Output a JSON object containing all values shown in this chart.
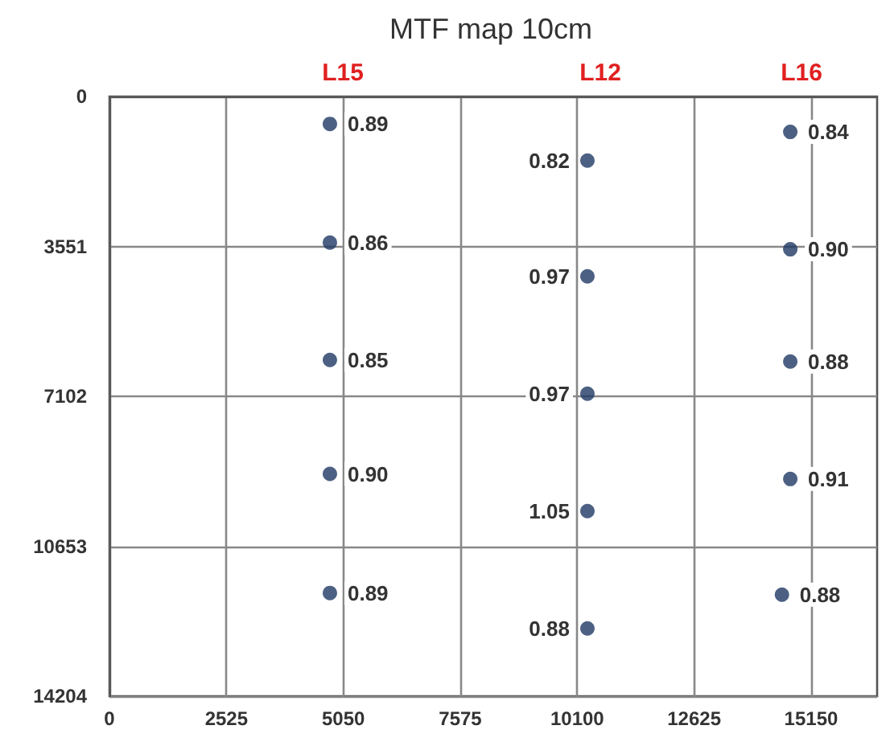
{
  "chart_data": {
    "type": "scatter",
    "title": "MTF map 10cm",
    "annotations": [
      "L15",
      "L12",
      "L16",
      {
        "text": "0.89",
        "x": 4760,
        "y": 650
      },
      {
        "text": "0.86",
        "x": 4760,
        "y": 3460
      },
      {
        "text": "0.85",
        "x": 4760,
        "y": 6240
      },
      {
        "text": "0.90",
        "x": 4760,
        "y": 8940
      },
      {
        "text": "0.89",
        "x": 4760,
        "y": 11760
      },
      {
        "text": "0.82",
        "x": 10320,
        "y": 1520
      },
      {
        "text": "0.97",
        "x": 10320,
        "y": 4260
      },
      {
        "text": "0.97",
        "x": 10320,
        "y": 7040
      },
      {
        "text": "1.05",
        "x": 10320,
        "y": 9820
      },
      {
        "text": "0.88",
        "x": 10320,
        "y": 12600
      },
      {
        "text": "0.84",
        "x": 14700,
        "y": 840
      },
      {
        "text": "0.90",
        "x": 14700,
        "y": 3620
      },
      {
        "text": "0.88",
        "x": 14700,
        "y": 6280
      },
      {
        "text": "0.91",
        "x": 14700,
        "y": 9060
      },
      {
        "text": "0.88",
        "x": 14520,
        "y": 11800
      }
    ],
    "series": [
      {
        "color": "#1f3864",
        "x": [
          4760,
          4760,
          4760,
          4760,
          4760
        ],
        "values": [
          650,
          3460,
          6240,
          8940,
          11760
        ]
      },
      {
        "color": "#1f3864",
        "x": [
          10320,
          10320,
          10320,
          10320,
          10320
        ],
        "values": [
          1520,
          4260,
          7040,
          9820,
          12600
        ]
      },
      {
        "color": "#1f3864",
        "x": [
          14700,
          14700,
          14700,
          14700,
          14520
        ],
        "values": [
          840,
          3620,
          6280,
          9060,
          11800
        ]
      }
    ],
    "xlim": [
      0,
      16575
    ],
    "xticks": [
      0,
      2525,
      5050,
      7575,
      10100,
      12625,
      15150
    ],
    "ylim": [
      14204,
      0
    ],
    "yticks": [
      0,
      3551,
      7102,
      10653,
      14204
    ],
    "grid": true,
    "marker": "circle"
  }
}
